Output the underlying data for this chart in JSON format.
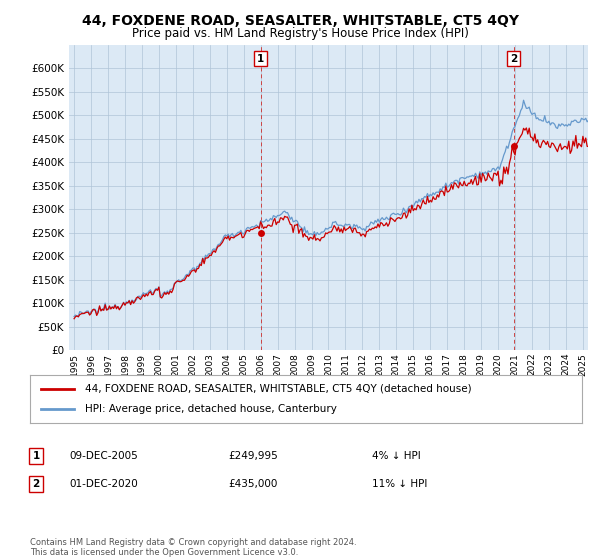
{
  "title": "44, FOXDENE ROAD, SEASALTER, WHITSTABLE, CT5 4QY",
  "subtitle": "Price paid vs. HM Land Registry's House Price Index (HPI)",
  "title_fontsize": 10,
  "subtitle_fontsize": 8.5,
  "background_color": "#ffffff",
  "plot_bg_color": "#dce9f5",
  "grid_color": "#b0c4d8",
  "hpi_color": "#6699cc",
  "price_color": "#cc0000",
  "ylim": [
    0,
    650000
  ],
  "yticks": [
    0,
    50000,
    100000,
    150000,
    200000,
    250000,
    300000,
    350000,
    400000,
    450000,
    500000,
    550000,
    600000
  ],
  "legend_label_price": "44, FOXDENE ROAD, SEASALTER, WHITSTABLE, CT5 4QY (detached house)",
  "legend_label_hpi": "HPI: Average price, detached house, Canterbury",
  "transaction1_label": "1",
  "transaction1_date": "09-DEC-2005",
  "transaction1_price": "£249,995",
  "transaction1_hpi": "4% ↓ HPI",
  "transaction1_x": 2006.0,
  "transaction1_y": 249995,
  "transaction2_label": "2",
  "transaction2_date": "01-DEC-2020",
  "transaction2_price": "£435,000",
  "transaction2_hpi": "11% ↓ HPI",
  "transaction2_x": 2020.92,
  "transaction2_y": 435000,
  "footer": "Contains HM Land Registry data © Crown copyright and database right 2024.\nThis data is licensed under the Open Government Licence v3.0.",
  "xlim_min": 1994.7,
  "xlim_max": 2025.3
}
